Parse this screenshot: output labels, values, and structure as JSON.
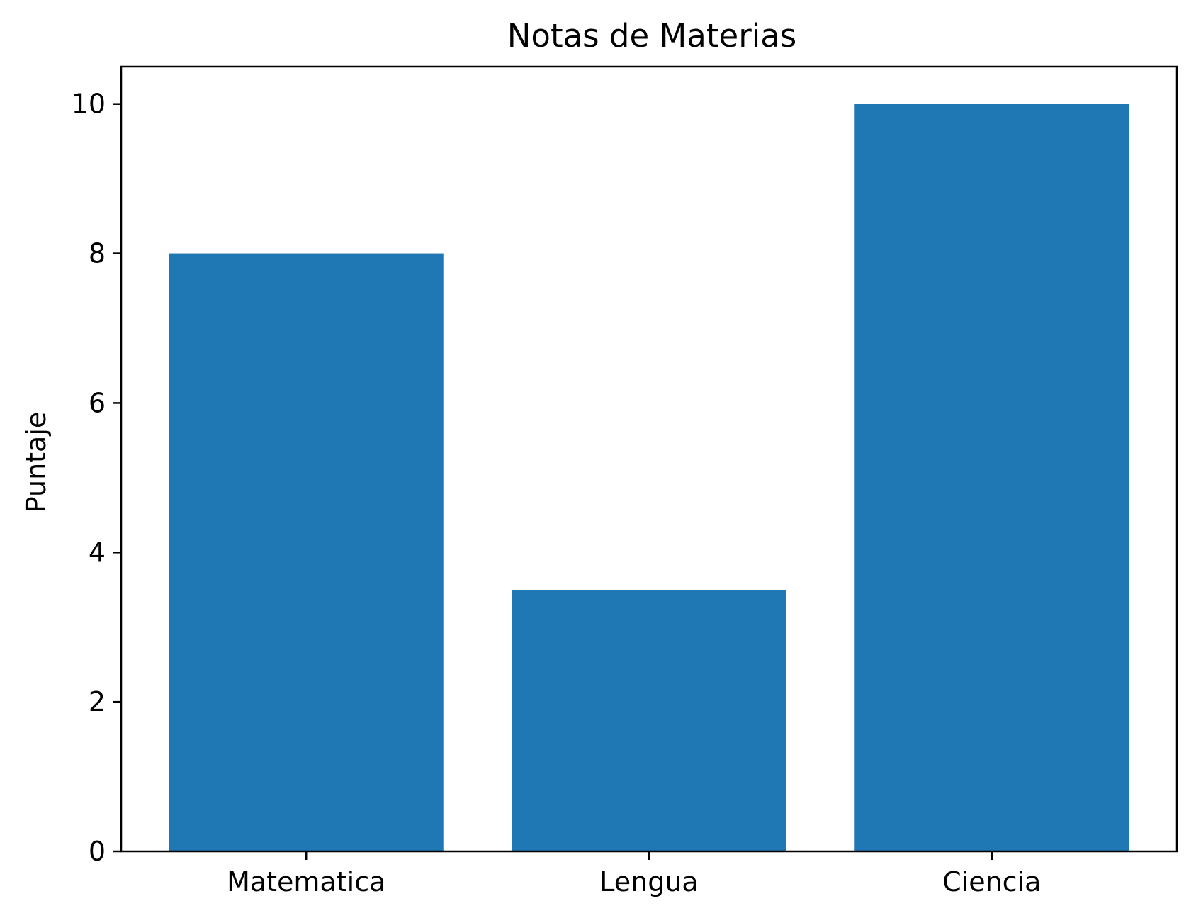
{
  "chart_data": {
    "type": "bar",
    "title": "Notas de Materias",
    "xlabel": "",
    "ylabel": "Puntaje",
    "categories": [
      "Matematica",
      "Lengua",
      "Ciencia"
    ],
    "values": [
      8,
      3.5,
      10
    ],
    "ylim": [
      0,
      10.5
    ],
    "yticks": [
      0,
      2,
      4,
      6,
      8,
      10
    ],
    "ytick_labels": [
      "0",
      "2",
      "4",
      "6",
      "8",
      "10"
    ],
    "bar_color": "#1f77b4",
    "grid": false,
    "legend": "none"
  }
}
